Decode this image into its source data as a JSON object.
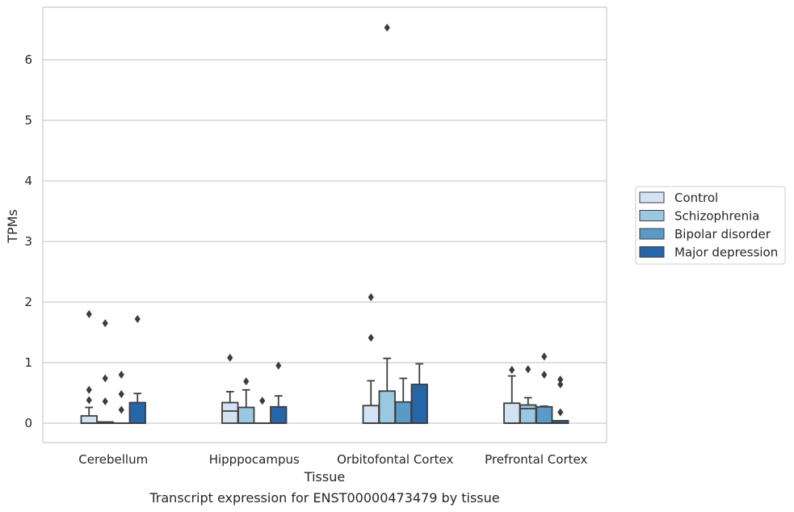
{
  "chart_data": {
    "type": "box",
    "title": "Transcript expression for ENST00000473479 by tissue",
    "xlabel": "Tissue",
    "ylabel": "TPMs",
    "ylim": [
      -0.32,
      6.87
    ],
    "yticks": [
      0,
      1,
      2,
      3,
      4,
      5,
      6
    ],
    "grid": "horizontal",
    "legend_position": "right",
    "categories": [
      "Cerebellum",
      "Hipppocampus",
      "Orbitofontal Cortex",
      "Prefrontal Cortex"
    ],
    "series": [
      {
        "name": "Control",
        "color": "#d3e3f3",
        "boxes": [
          {
            "q1": 0.0,
            "median": 0.0,
            "q3": 0.12,
            "whisker_low": 0.0,
            "whisker_high": 0.26,
            "outliers": [
              1.8,
              0.55,
              0.38
            ]
          },
          {
            "q1": 0.0,
            "median": 0.2,
            "q3": 0.34,
            "whisker_low": 0.0,
            "whisker_high": 0.52,
            "outliers": [
              1.08
            ]
          },
          {
            "q1": 0.0,
            "median": 0.0,
            "q3": 0.29,
            "whisker_low": 0.0,
            "whisker_high": 0.7,
            "outliers": [
              2.08,
              1.41
            ]
          },
          {
            "q1": 0.0,
            "median": 0.0,
            "q3": 0.33,
            "whisker_low": 0.0,
            "whisker_high": 0.78,
            "outliers": [
              0.88
            ]
          }
        ]
      },
      {
        "name": "Schizophrenia",
        "color": "#9ac8e0",
        "boxes": [
          {
            "q1": 0.0,
            "median": 0.0,
            "q3": 0.02,
            "whisker_low": 0.0,
            "whisker_high": 0.02,
            "outliers": [
              1.65,
              0.74,
              0.36
            ]
          },
          {
            "q1": 0.0,
            "median": 0.0,
            "q3": 0.26,
            "whisker_low": 0.0,
            "whisker_high": 0.55,
            "outliers": [
              0.69
            ]
          },
          {
            "q1": 0.0,
            "median": 0.0,
            "q3": 0.53,
            "whisker_low": 0.0,
            "whisker_high": 1.07,
            "outliers": [
              6.53
            ]
          },
          {
            "q1": 0.0,
            "median": 0.24,
            "q3": 0.3,
            "whisker_low": 0.0,
            "whisker_high": 0.42,
            "outliers": [
              0.89
            ]
          }
        ]
      },
      {
        "name": "Bipolar disorder",
        "color": "#5a9ac9",
        "boxes": [
          {
            "q1": 0.0,
            "median": 0.0,
            "q3": 0.0,
            "whisker_low": 0.0,
            "whisker_high": 0.0,
            "outliers": [
              0.8,
              0.48,
              0.22
            ]
          },
          {
            "q1": 0.0,
            "median": 0.0,
            "q3": 0.0,
            "whisker_low": 0.0,
            "whisker_high": 0.0,
            "outliers": [
              0.37
            ]
          },
          {
            "q1": 0.0,
            "median": 0.0,
            "q3": 0.35,
            "whisker_low": 0.0,
            "whisker_high": 0.74,
            "outliers": []
          },
          {
            "q1": 0.0,
            "median": 0.0,
            "q3": 0.27,
            "whisker_low": 0.0,
            "whisker_high": 0.28,
            "outliers": [
              1.1,
              0.8
            ]
          }
        ]
      },
      {
        "name": "Major depression",
        "color": "#2565a8",
        "boxes": [
          {
            "q1": 0.0,
            "median": 0.0,
            "q3": 0.34,
            "whisker_low": 0.0,
            "whisker_high": 0.49,
            "outliers": [
              1.72
            ]
          },
          {
            "q1": 0.0,
            "median": 0.0,
            "q3": 0.27,
            "whisker_low": 0.0,
            "whisker_high": 0.45,
            "outliers": [
              0.95
            ]
          },
          {
            "q1": 0.0,
            "median": 0.0,
            "q3": 0.64,
            "whisker_low": 0.0,
            "whisker_high": 0.98,
            "outliers": []
          },
          {
            "q1": 0.0,
            "median": 0.0,
            "q3": 0.04,
            "whisker_low": 0.0,
            "whisker_high": 0.04,
            "outliers": [
              0.72,
              0.64,
              0.18
            ]
          }
        ]
      }
    ]
  }
}
